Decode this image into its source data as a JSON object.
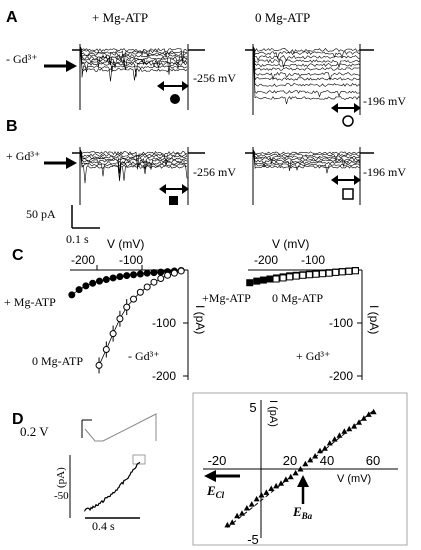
{
  "figure": {
    "panels": {
      "A": {
        "letter": "A",
        "row_label": "- Gd³⁺",
        "left": {
          "condition": "+ Mg-ATP",
          "voltage_label": "-256 mV",
          "marker": "filled-circle"
        },
        "right": {
          "condition": "0 Mg-ATP",
          "voltage_label": "-196 mV",
          "marker": "open-circle"
        }
      },
      "B": {
        "letter": "B",
        "row_label": "+ Gd³⁺",
        "left": {
          "voltage_label": "-256 mV",
          "marker": "filled-square"
        },
        "right": {
          "voltage_label": "-196 mV",
          "marker": "open-square"
        },
        "scale_y": "50 pA",
        "scale_x": "0.1 s"
      },
      "C": {
        "letter": "C",
        "left_labels": {
          "plus_mgatp": "+ Mg-ATP",
          "zero_mgatp": "0 Mg-ATP",
          "minus_gd": "- Gd³⁺"
        },
        "right_labels": {
          "plus_mgatp": "+Mg-ATP",
          "zero_mgatp": "0 Mg-ATP",
          "plus_gd": "+ Gd³⁺"
        }
      },
      "D": {
        "letter": "D",
        "ramp_label": "0.2 V",
        "time_label": "0.4 s",
        "inset_ylabel": "(pA)",
        "e_cl": "E",
        "e_cl_sub": "Cl",
        "e_ba": "E",
        "e_ba_sub": "Ba"
      }
    }
  },
  "chart_data": [
    {
      "type": "scatter",
      "panel": "C-left",
      "xlabel": "V (mV)",
      "ylabel": "I (pA)",
      "xlim": [
        -260,
        0
      ],
      "ylim": [
        -200,
        0
      ],
      "xticks": [
        -200,
        -100
      ],
      "yticks": [
        -100,
        -200
      ],
      "series": [
        {
          "name": "+ Mg-ATP",
          "marker": "filled-circle",
          "x": [
            -256,
            -240,
            -225,
            -210,
            -195,
            -180,
            -165,
            -150,
            -135,
            -120,
            -105,
            -90,
            -75,
            -60,
            -45,
            -30,
            -15
          ],
          "y": [
            -47,
            -37,
            -30,
            -25,
            -21,
            -18,
            -15,
            -12.5,
            -10.5,
            -9,
            -7.5,
            -6,
            -5,
            -4,
            -3,
            -2,
            -1
          ]
        },
        {
          "name": "0 Mg-ATP",
          "marker": "open-circle",
          "x": [
            -196,
            -180,
            -165,
            -150,
            -135,
            -120,
            -105,
            -90,
            -75,
            -60,
            -45,
            -30,
            -15
          ],
          "y": [
            -180,
            -150,
            -120,
            -92,
            -70,
            -55,
            -42,
            -32,
            -23,
            -16,
            -10,
            -6,
            -2
          ]
        }
      ]
    },
    {
      "type": "scatter",
      "panel": "C-right",
      "xlabel": "V (mV)",
      "ylabel": "I (pA)",
      "xlim": [
        -260,
        0
      ],
      "ylim": [
        -200,
        0
      ],
      "xticks": [
        -200,
        -100
      ],
      "yticks": [
        -100,
        -200
      ],
      "series": [
        {
          "name": "+Mg-ATP",
          "marker": "filled-square",
          "x": [
            -256,
            -240,
            -225,
            -210,
            -195,
            -180,
            -165,
            -150,
            -135,
            -120,
            -105,
            -90,
            -75,
            -60,
            -45,
            -30,
            -15
          ],
          "y": [
            -24,
            -21,
            -19,
            -17,
            -15,
            -13,
            -11,
            -10,
            -9,
            -8,
            -7,
            -6,
            -5,
            -4,
            -3,
            -2,
            -1
          ]
        },
        {
          "name": "0 Mg-ATP",
          "marker": "open-square",
          "x": [
            -196,
            -180,
            -165,
            -150,
            -135,
            -120,
            -105,
            -90,
            -75,
            -60,
            -45,
            -30,
            -15
          ],
          "y": [
            -17,
            -15,
            -13,
            -11.5,
            -10,
            -9,
            -8,
            -7,
            -6,
            -4.5,
            -3.5,
            -2.5,
            -1.5
          ]
        }
      ]
    },
    {
      "type": "scatter",
      "panel": "D-inset",
      "xlabel": "V (mV)",
      "ylabel": "I (pA)",
      "xlim": [
        -20,
        60
      ],
      "ylim": [
        -5,
        5
      ],
      "xticks": [
        -20,
        20,
        40,
        60
      ],
      "yticks": [
        5,
        -5
      ],
      "series": [
        {
          "name": "data",
          "marker": "filled-triangle",
          "x": [
            -10,
            -8,
            -6,
            -4,
            -2,
            0,
            2,
            4,
            6,
            8,
            10,
            12,
            14,
            16,
            18,
            20,
            22,
            24,
            26,
            28,
            30,
            32,
            34,
            36,
            38,
            40,
            42,
            44,
            46,
            48,
            50
          ],
          "y": [
            -4.3,
            -4.1,
            -3.6,
            -3.4,
            -3.0,
            -2.7,
            -2.3,
            -2.0,
            -1.8,
            -1.5,
            -1.3,
            -1.1,
            -0.8,
            -0.6,
            -0.3,
            0.0,
            0.4,
            0.7,
            1.0,
            1.4,
            1.6,
            2.0,
            2.3,
            2.6,
            2.9,
            3.1,
            3.3,
            3.6,
            3.9,
            4.2,
            4.4
          ]
        }
      ],
      "fit_line": {
        "x": [
          -10,
          50
        ],
        "y": [
          -4.5,
          4.5
        ]
      }
    }
  ]
}
